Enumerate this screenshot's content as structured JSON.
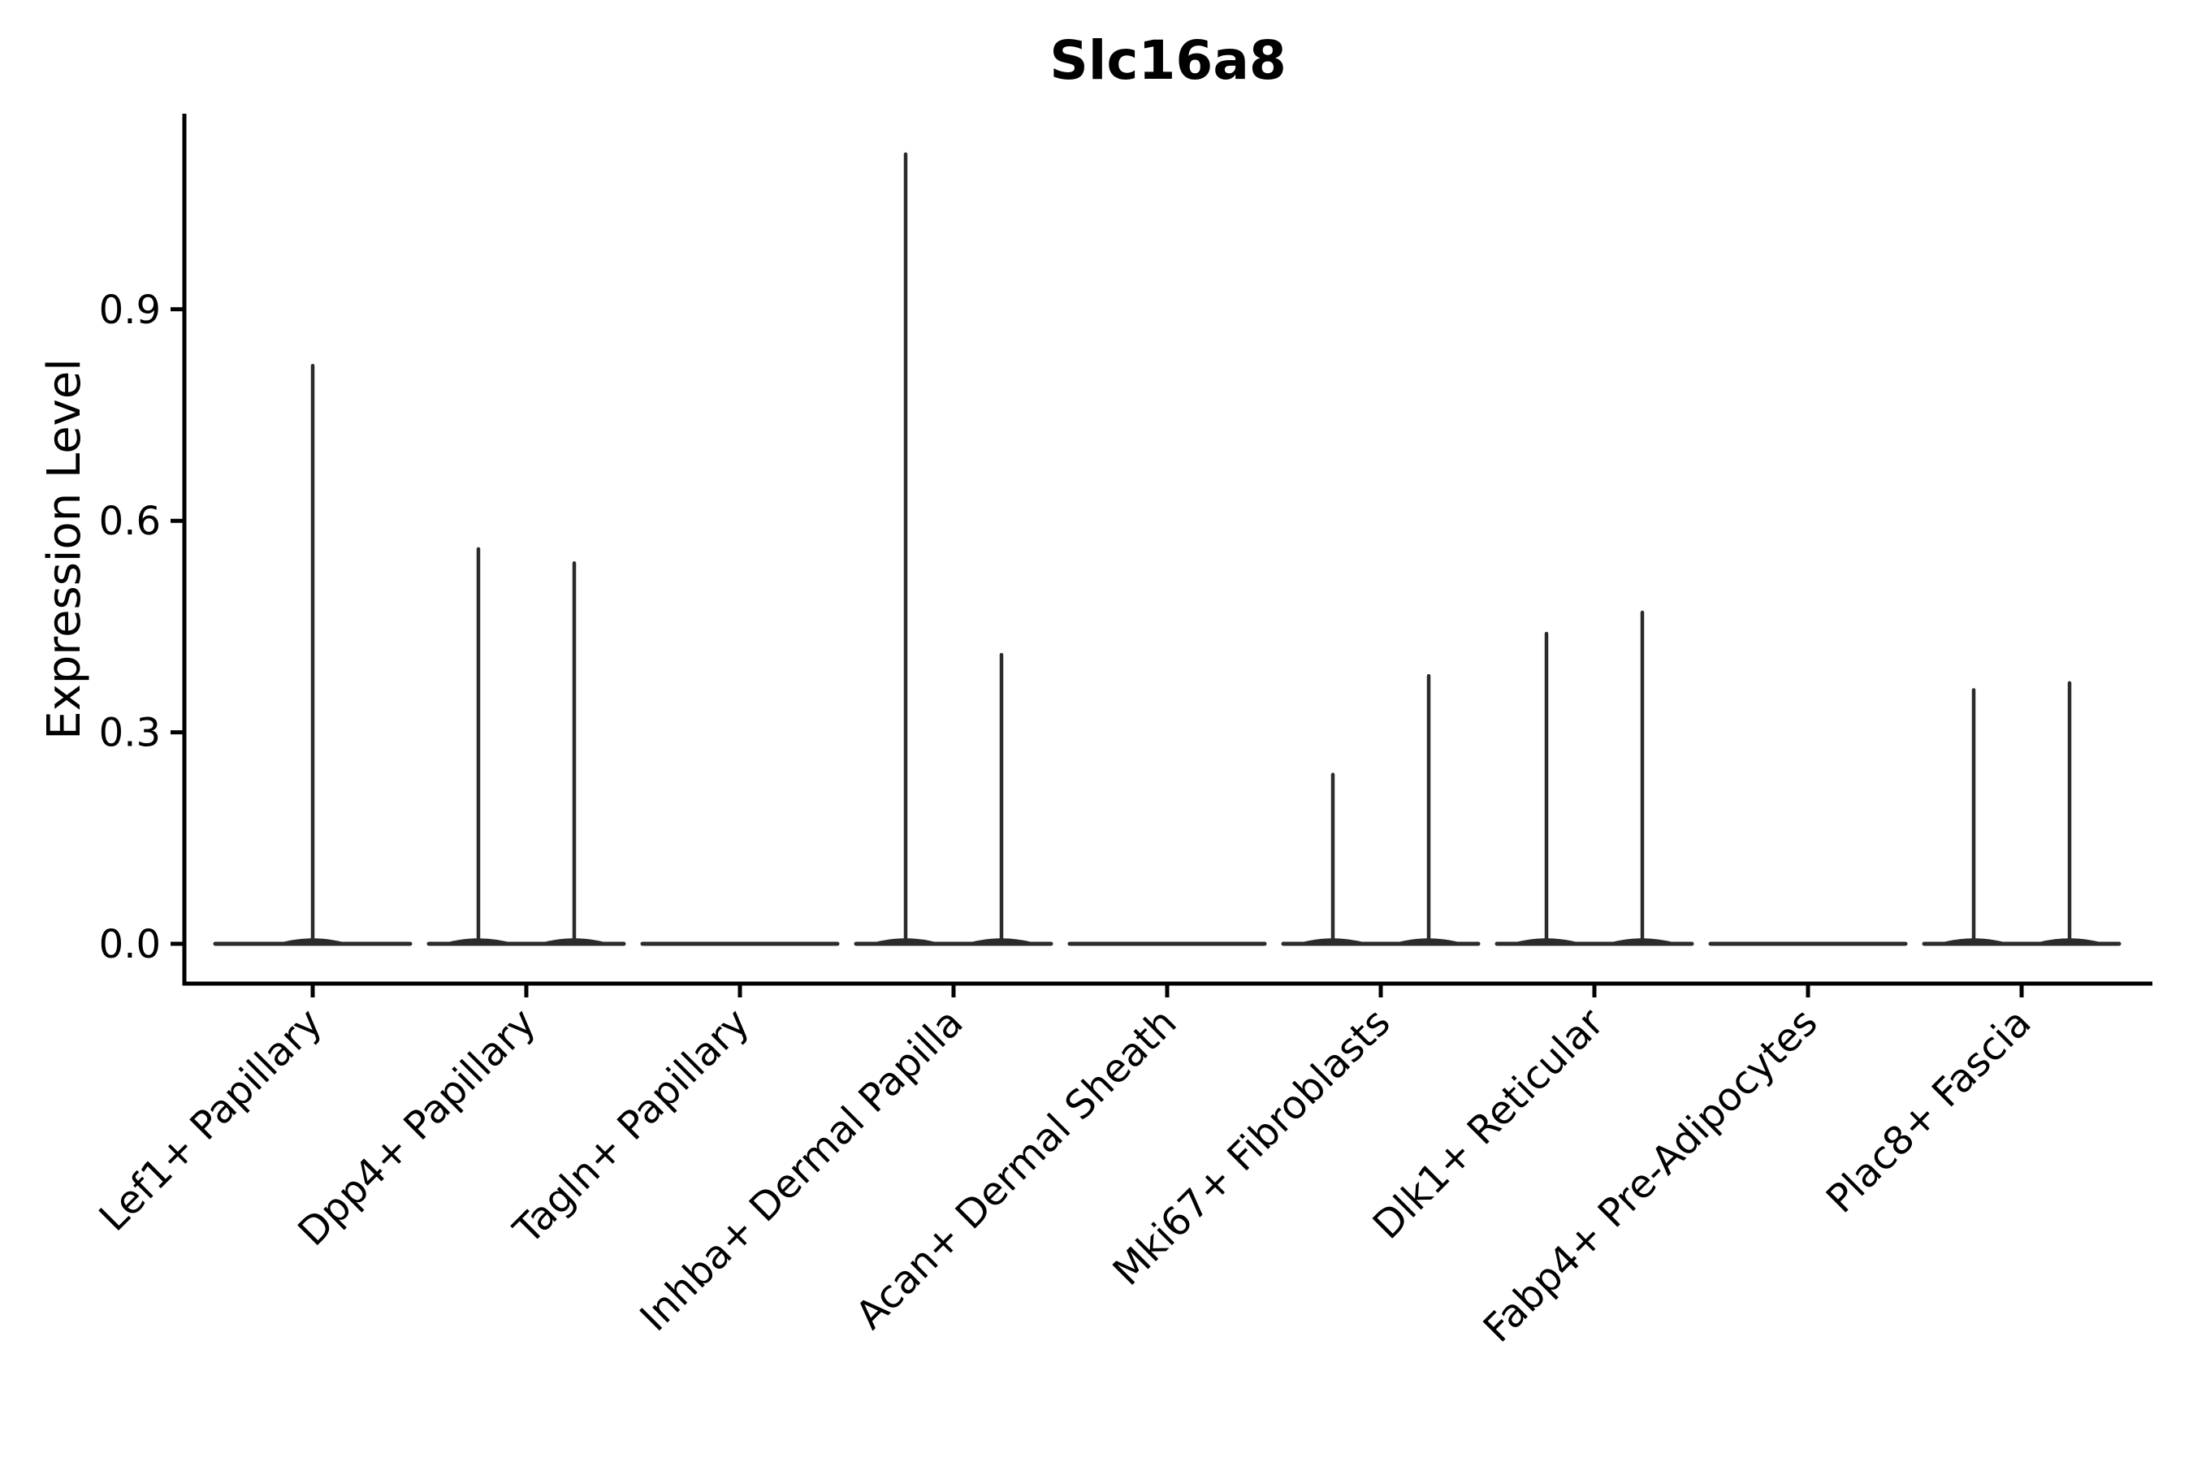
{
  "chart_data": {
    "type": "violin",
    "title": "Slc16a8",
    "ylabel": "Expression Level",
    "xlabel": "",
    "grid": false,
    "legend": "none",
    "ylim": [
      -0.06,
      1.18
    ],
    "yticks": [
      {
        "value": 0.0,
        "label": "0.0"
      },
      {
        "value": 0.3,
        "label": "0.3"
      },
      {
        "value": 0.6,
        "label": "0.6"
      },
      {
        "value": 0.9,
        "label": "0.9"
      }
    ],
    "violin_line_color": "#2b2b2b",
    "axis_color": "#000000",
    "categories": [
      {
        "label": "Lef1+ Papillary",
        "violins": [
          {
            "offset": 0,
            "max": 0.82
          }
        ]
      },
      {
        "label": "Dpp4+ Papillary",
        "violins": [
          {
            "offset": -59,
            "max": 0.56
          },
          {
            "offset": 59,
            "max": 0.54
          }
        ]
      },
      {
        "label": "Tagln+ Papillary",
        "violins": []
      },
      {
        "label": "Inhba+ Dermal Papilla",
        "violins": [
          {
            "offset": -59,
            "max": 1.12
          },
          {
            "offset": 59,
            "max": 0.41
          }
        ]
      },
      {
        "label": "Acan+ Dermal Sheath",
        "violins": []
      },
      {
        "label": "Mki67+ Fibroblasts",
        "violins": [
          {
            "offset": -59,
            "max": 0.24
          },
          {
            "offset": 59,
            "max": 0.38
          }
        ]
      },
      {
        "label": "Dlk1+ Reticular",
        "violins": [
          {
            "offset": -59,
            "max": 0.44
          },
          {
            "offset": 59,
            "max": 0.47
          }
        ]
      },
      {
        "label": "Fabp4+ Pre-Adipocytes",
        "violins": []
      },
      {
        "label": "Plac8+ Fascia",
        "violins": [
          {
            "offset": -59,
            "max": 0.36
          },
          {
            "offset": 59,
            "max": 0.37
          }
        ]
      }
    ]
  }
}
